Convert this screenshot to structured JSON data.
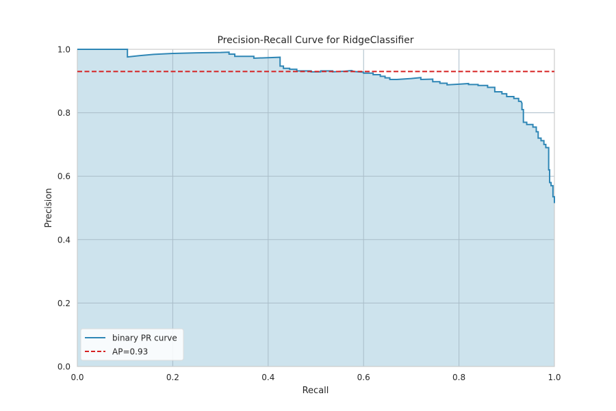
{
  "chart_data": {
    "type": "line",
    "title": "Precision-Recall Curve for RidgeClassifier",
    "xlabel": "Recall",
    "ylabel": "Precision",
    "xlim": [
      0.0,
      1.0
    ],
    "ylim": [
      0.0,
      1.0
    ],
    "xticks": [
      "0.0",
      "0.2",
      "0.4",
      "0.6",
      "0.8",
      "1.0"
    ],
    "yticks": [
      "0.0",
      "0.2",
      "0.4",
      "0.6",
      "0.8",
      "1.0"
    ],
    "grid": true,
    "legend_position": "lower-left",
    "colors": {
      "curve": "#2e86b5",
      "fill": "#cde3ed",
      "ap_line": "#d62020",
      "grid": "#a9bcc8",
      "spine": "#cccccc"
    },
    "series": [
      {
        "name": "binary PR curve",
        "style": "solid",
        "points": [
          [
            0.0,
            1.0
          ],
          [
            0.105,
            1.0
          ],
          [
            0.105,
            0.976
          ],
          [
            0.13,
            0.98
          ],
          [
            0.16,
            0.984
          ],
          [
            0.2,
            0.987
          ],
          [
            0.25,
            0.989
          ],
          [
            0.3,
            0.99
          ],
          [
            0.318,
            0.991
          ],
          [
            0.318,
            0.985
          ],
          [
            0.33,
            0.985
          ],
          [
            0.33,
            0.978
          ],
          [
            0.37,
            0.978
          ],
          [
            0.37,
            0.972
          ],
          [
            0.425,
            0.975
          ],
          [
            0.425,
            0.947
          ],
          [
            0.432,
            0.947
          ],
          [
            0.432,
            0.94
          ],
          [
            0.445,
            0.94
          ],
          [
            0.445,
            0.937
          ],
          [
            0.46,
            0.937
          ],
          [
            0.46,
            0.932
          ],
          [
            0.49,
            0.932
          ],
          [
            0.49,
            0.929
          ],
          [
            0.51,
            0.929
          ],
          [
            0.51,
            0.932
          ],
          [
            0.535,
            0.932
          ],
          [
            0.535,
            0.929
          ],
          [
            0.56,
            0.931
          ],
          [
            0.575,
            0.933
          ],
          [
            0.58,
            0.93
          ],
          [
            0.6,
            0.928
          ],
          [
            0.6,
            0.925
          ],
          [
            0.62,
            0.925
          ],
          [
            0.62,
            0.92
          ],
          [
            0.635,
            0.92
          ],
          [
            0.635,
            0.915
          ],
          [
            0.645,
            0.915
          ],
          [
            0.645,
            0.91
          ],
          [
            0.655,
            0.91
          ],
          [
            0.655,
            0.905
          ],
          [
            0.67,
            0.905
          ],
          [
            0.7,
            0.908
          ],
          [
            0.72,
            0.911
          ],
          [
            0.72,
            0.905
          ],
          [
            0.745,
            0.906
          ],
          [
            0.745,
            0.898
          ],
          [
            0.76,
            0.898
          ],
          [
            0.76,
            0.893
          ],
          [
            0.775,
            0.893
          ],
          [
            0.775,
            0.888
          ],
          [
            0.8,
            0.89
          ],
          [
            0.82,
            0.892
          ],
          [
            0.82,
            0.889
          ],
          [
            0.84,
            0.889
          ],
          [
            0.84,
            0.886
          ],
          [
            0.86,
            0.886
          ],
          [
            0.86,
            0.88
          ],
          [
            0.875,
            0.88
          ],
          [
            0.875,
            0.866
          ],
          [
            0.89,
            0.866
          ],
          [
            0.89,
            0.86
          ],
          [
            0.9,
            0.86
          ],
          [
            0.9,
            0.851
          ],
          [
            0.915,
            0.851
          ],
          [
            0.915,
            0.845
          ],
          [
            0.925,
            0.845
          ],
          [
            0.925,
            0.836
          ],
          [
            0.93,
            0.836
          ],
          [
            0.932,
            0.83
          ],
          [
            0.932,
            0.81
          ],
          [
            0.935,
            0.81
          ],
          [
            0.935,
            0.77
          ],
          [
            0.942,
            0.77
          ],
          [
            0.942,
            0.763
          ],
          [
            0.955,
            0.763
          ],
          [
            0.955,
            0.755
          ],
          [
            0.962,
            0.755
          ],
          [
            0.962,
            0.74
          ],
          [
            0.966,
            0.74
          ],
          [
            0.966,
            0.72
          ],
          [
            0.972,
            0.72
          ],
          [
            0.972,
            0.712
          ],
          [
            0.978,
            0.712
          ],
          [
            0.978,
            0.7
          ],
          [
            0.982,
            0.7
          ],
          [
            0.982,
            0.69
          ],
          [
            0.988,
            0.69
          ],
          [
            0.988,
            0.62
          ],
          [
            0.99,
            0.62
          ],
          [
            0.99,
            0.58
          ],
          [
            0.993,
            0.58
          ],
          [
            0.993,
            0.57
          ],
          [
            0.997,
            0.57
          ],
          [
            0.997,
            0.535
          ],
          [
            1.0,
            0.535
          ],
          [
            1.0,
            0.515
          ]
        ]
      },
      {
        "name": "AP=0.93",
        "style": "dashed",
        "y": 0.93
      }
    ]
  }
}
